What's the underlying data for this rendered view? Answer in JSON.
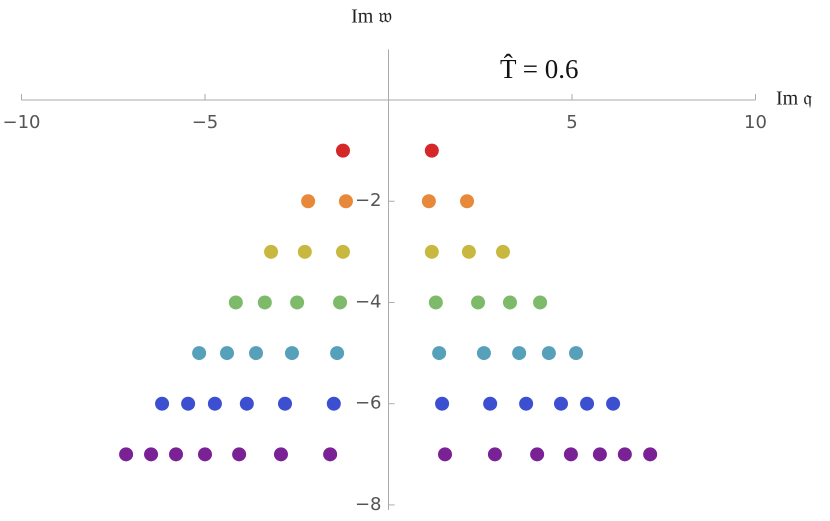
{
  "chart_data": {
    "type": "scatter",
    "annotation": "T̂ = 0.6",
    "xlabel": "Im 𝔮",
    "ylabel": "Im 𝔴",
    "xlim": [
      -10,
      10
    ],
    "ylim": [
      -8.1,
      1
    ],
    "xticks": [
      {
        "value": -10,
        "label": "−10"
      },
      {
        "value": -5,
        "label": "−5"
      },
      5,
      10
    ],
    "yticks": [
      {
        "value": -2,
        "label": "−2"
      },
      {
        "value": -4,
        "label": "−4"
      },
      {
        "value": -6,
        "label": "−6"
      },
      {
        "value": -8,
        "label": "−8"
      }
    ],
    "series": [
      {
        "color": "#d62728",
        "x": [
          -1.24,
          1.18
        ],
        "y": [
          -1,
          -1
        ]
      },
      {
        "color": "#e8883a",
        "x": [
          -2.19,
          -1.16,
          1.1,
          2.14
        ],
        "y": [
          -2,
          -2,
          -2,
          -2
        ]
      },
      {
        "color": "#c9b83f",
        "x": [
          -3.2,
          -2.28,
          -1.24,
          1.18,
          2.19,
          3.12
        ],
        "y": [
          -3,
          -3,
          -3,
          -3,
          -3,
          -3
        ]
      },
      {
        "color": "#7dbb6a",
        "x": [
          -4.16,
          -3.37,
          -2.49,
          -1.32,
          1.29,
          2.44,
          3.31,
          4.13
        ],
        "y": [
          -4,
          -4,
          -4,
          -4,
          -4,
          -4,
          -4,
          -4
        ]
      },
      {
        "color": "#56a0b9",
        "x": [
          -5.16,
          -4.4,
          -3.61,
          -2.63,
          -1.4,
          1.38,
          2.6,
          3.56,
          4.37,
          5.11
        ],
        "y": [
          -5,
          -5,
          -5,
          -5,
          -5,
          -5,
          -5,
          -5,
          -5,
          -5
        ]
      },
      {
        "color": "#3c4fd0",
        "x": [
          -6.17,
          -5.46,
          -4.73,
          -3.86,
          -2.82,
          -1.49,
          1.46,
          2.77,
          3.75,
          4.7,
          5.41,
          6.12
        ],
        "y": [
          -6,
          -6,
          -6,
          -6,
          -6,
          -6,
          -6,
          -6,
          -6,
          -6,
          -6,
          -6
        ]
      },
      {
        "color": "#7a2295",
        "x": [
          -7.15,
          -6.47,
          -5.79,
          -5.0,
          -4.07,
          -2.93,
          -1.59,
          1.54,
          2.9,
          4.05,
          4.97,
          5.76,
          6.44,
          7.13
        ],
        "y": [
          -7,
          -7,
          -7,
          -7,
          -7,
          -7,
          -7,
          -7,
          -7,
          -7,
          -7,
          -7,
          -7,
          -7
        ]
      }
    ]
  }
}
